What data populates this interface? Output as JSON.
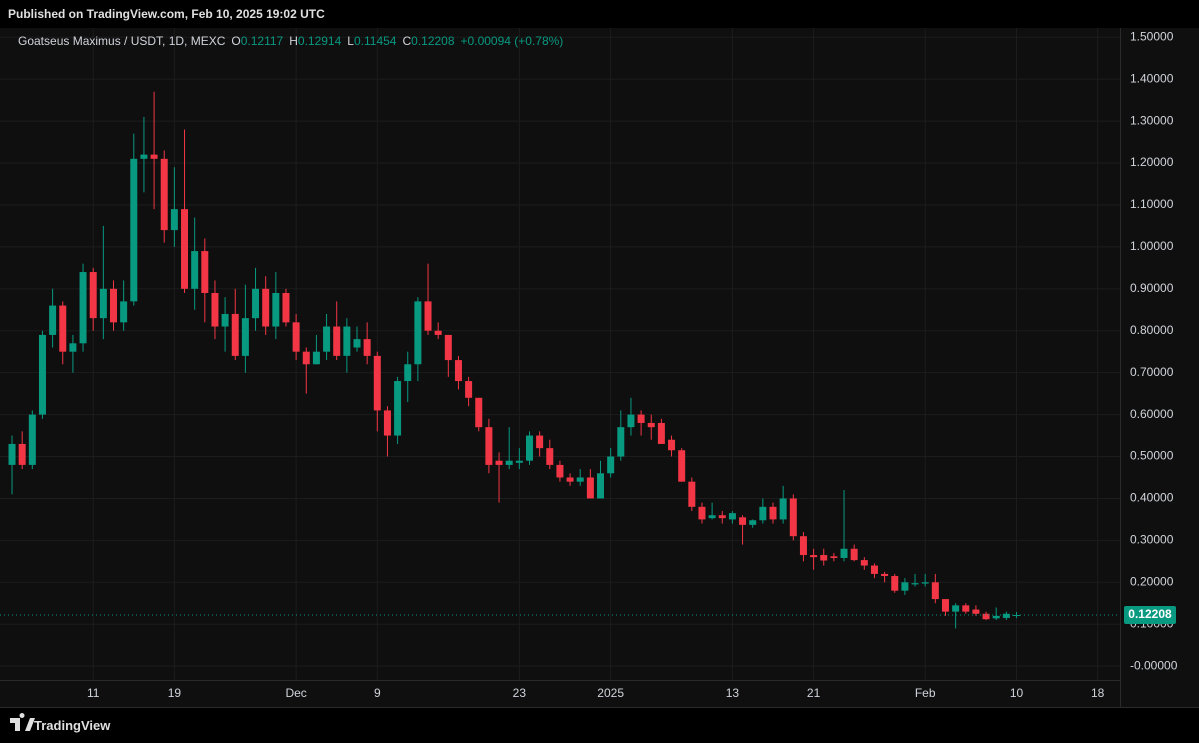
{
  "header": "Published on TradingView.com, Feb 10, 2025 19:02 UTC",
  "footer": "TradingView",
  "chart_data": {
    "type": "candlestick",
    "legend": {
      "symbol": "Goatseus Maximus / USDT, 1D, MEXC",
      "items": [
        {
          "label": "O",
          "value": "0.12117"
        },
        {
          "label": "H",
          "value": "0.12914"
        },
        {
          "label": "L",
          "value": "0.11454"
        },
        {
          "label": "C",
          "value": "0.12208"
        }
      ],
      "change": "+0.00094 (+0.78%)"
    },
    "up_color": "#089981",
    "down_color": "#f23645",
    "open": [
      0.48,
      0.53,
      0.48,
      0.6,
      0.79,
      0.86,
      0.75,
      0.77,
      0.94,
      0.83,
      0.9,
      0.82,
      0.87,
      1.21,
      1.22,
      1.21,
      1.04,
      1.09,
      0.9,
      0.99,
      0.89,
      0.81,
      0.84,
      0.74,
      0.83,
      0.9,
      0.81,
      0.89,
      0.82,
      0.75,
      0.72,
      0.75,
      0.81,
      0.74,
      0.76,
      0.78,
      0.74,
      0.61,
      0.55,
      0.68,
      0.72,
      0.87,
      0.8,
      0.79,
      0.73,
      0.68,
      0.64,
      0.57,
      0.49,
      0.48,
      0.485,
      0.49,
      0.55,
      0.52,
      0.48,
      0.45,
      0.44,
      0.45,
      0.4,
      0.46,
      0.5,
      0.57,
      0.6,
      0.58,
      0.58,
      0.54,
      0.515,
      0.44,
      0.38,
      0.353,
      0.36,
      0.35,
      0.355,
      0.337,
      0.348,
      0.38,
      0.35,
      0.4,
      0.31,
      0.265,
      0.265,
      0.262,
      0.258,
      0.28,
      0.253,
      0.24,
      0.22,
      0.215,
      0.18,
      0.195,
      0.197,
      0.2,
      0.16,
      0.13,
      0.145,
      0.135,
      0.125,
      0.114,
      0.115,
      0.12117
    ],
    "high": [
      0.55,
      0.56,
      0.61,
      0.8,
      0.9,
      0.87,
      0.79,
      0.96,
      0.95,
      1.05,
      0.92,
      0.92,
      1.27,
      1.31,
      1.37,
      1.23,
      1.19,
      1.28,
      1.07,
      1.02,
      0.92,
      0.88,
      0.9,
      0.91,
      0.95,
      0.93,
      0.94,
      0.9,
      0.84,
      0.76,
      0.79,
      0.84,
      0.87,
      0.83,
      0.81,
      0.82,
      0.75,
      0.62,
      0.69,
      0.75,
      0.88,
      0.96,
      0.82,
      0.79,
      0.74,
      0.69,
      0.64,
      0.59,
      0.51,
      0.57,
      0.52,
      0.56,
      0.56,
      0.54,
      0.49,
      0.46,
      0.47,
      0.47,
      0.49,
      0.52,
      0.61,
      0.64,
      0.61,
      0.6,
      0.59,
      0.55,
      0.52,
      0.45,
      0.39,
      0.39,
      0.37,
      0.37,
      0.36,
      0.35,
      0.4,
      0.39,
      0.43,
      0.41,
      0.32,
      0.28,
      0.28,
      0.27,
      0.42,
      0.29,
      0.26,
      0.245,
      0.225,
      0.22,
      0.21,
      0.22,
      0.22,
      0.22,
      0.16,
      0.15,
      0.15,
      0.145,
      0.13,
      0.14,
      0.13,
      0.12914
    ],
    "low": [
      0.41,
      0.47,
      0.47,
      0.59,
      0.76,
      0.72,
      0.7,
      0.75,
      0.8,
      0.78,
      0.8,
      0.8,
      0.86,
      1.13,
      1.09,
      1.01,
      1.0,
      0.89,
      0.85,
      0.82,
      0.78,
      0.75,
      0.73,
      0.7,
      0.8,
      0.79,
      0.78,
      0.81,
      0.73,
      0.65,
      0.72,
      0.73,
      0.73,
      0.7,
      0.75,
      0.72,
      0.56,
      0.5,
      0.53,
      0.63,
      0.68,
      0.79,
      0.78,
      0.69,
      0.66,
      0.62,
      0.56,
      0.46,
      0.39,
      0.47,
      0.47,
      0.48,
      0.5,
      0.47,
      0.44,
      0.43,
      0.43,
      0.4,
      0.4,
      0.45,
      0.49,
      0.55,
      0.55,
      0.54,
      0.53,
      0.5,
      0.44,
      0.37,
      0.34,
      0.35,
      0.34,
      0.34,
      0.29,
      0.33,
      0.34,
      0.34,
      0.34,
      0.3,
      0.25,
      0.23,
      0.24,
      0.25,
      0.25,
      0.25,
      0.23,
      0.21,
      0.2,
      0.175,
      0.17,
      0.19,
      0.19,
      0.15,
      0.12,
      0.09,
      0.125,
      0.12,
      0.11,
      0.11,
      0.11,
      0.11454
    ],
    "close": [
      0.53,
      0.48,
      0.6,
      0.79,
      0.86,
      0.75,
      0.77,
      0.94,
      0.83,
      0.9,
      0.82,
      0.87,
      1.21,
      1.22,
      1.21,
      1.04,
      1.09,
      0.9,
      0.99,
      0.89,
      0.81,
      0.84,
      0.74,
      0.83,
      0.9,
      0.81,
      0.89,
      0.82,
      0.75,
      0.72,
      0.75,
      0.81,
      0.74,
      0.81,
      0.78,
      0.74,
      0.61,
      0.55,
      0.68,
      0.72,
      0.87,
      0.8,
      0.79,
      0.73,
      0.68,
      0.64,
      0.57,
      0.48,
      0.48,
      0.49,
      0.49,
      0.55,
      0.52,
      0.48,
      0.45,
      0.44,
      0.45,
      0.4,
      0.46,
      0.5,
      0.57,
      0.6,
      0.58,
      0.57,
      0.53,
      0.515,
      0.44,
      0.38,
      0.35,
      0.36,
      0.353,
      0.365,
      0.337,
      0.348,
      0.38,
      0.35,
      0.4,
      0.31,
      0.265,
      0.26,
      0.252,
      0.258,
      0.28,
      0.253,
      0.24,
      0.22,
      0.215,
      0.18,
      0.2,
      0.198,
      0.2,
      0.16,
      0.13,
      0.145,
      0.13,
      0.125,
      0.112,
      0.12,
      0.125,
      0.12208
    ],
    "xlim": [
      -0.2,
      109.2
    ],
    "xticks": [
      {
        "value": 8,
        "label": "11"
      },
      {
        "value": 16,
        "label": "19"
      },
      {
        "value": 28,
        "label": "Dec"
      },
      {
        "value": 36,
        "label": "9"
      },
      {
        "value": 50,
        "label": "23"
      },
      {
        "value": 59,
        "label": "2025"
      },
      {
        "value": 71,
        "label": "13"
      },
      {
        "value": 79,
        "label": "21"
      },
      {
        "value": 90,
        "label": "Feb"
      },
      {
        "value": 99,
        "label": "10"
      },
      {
        "value": 107,
        "label": "18"
      }
    ],
    "ylim": [
      -0.033,
      1.522
    ],
    "yticks": [
      {
        "value": 0,
        "label": "-0.00000"
      },
      {
        "value": 0.1,
        "label": "0.10000"
      },
      {
        "value": 0.2,
        "label": "0.20000"
      },
      {
        "value": 0.3,
        "label": "0.30000"
      },
      {
        "value": 0.4,
        "label": "0.40000"
      },
      {
        "value": 0.5,
        "label": "0.50000"
      },
      {
        "value": 0.6,
        "label": "0.60000"
      },
      {
        "value": 0.7,
        "label": "0.70000"
      },
      {
        "value": 0.8,
        "label": "0.80000"
      },
      {
        "value": 0.9,
        "label": "0.90000"
      },
      {
        "value": 1.0,
        "label": "1.00000"
      },
      {
        "value": 1.1,
        "label": "1.10000"
      },
      {
        "value": 1.2,
        "label": "1.20000"
      },
      {
        "value": 1.3,
        "label": "1.30000"
      },
      {
        "value": 1.4,
        "label": "1.40000"
      },
      {
        "value": 1.5,
        "label": "1.50000"
      }
    ],
    "grid": true,
    "last_price": {
      "value": 0.12208,
      "label": "0.12208"
    }
  }
}
